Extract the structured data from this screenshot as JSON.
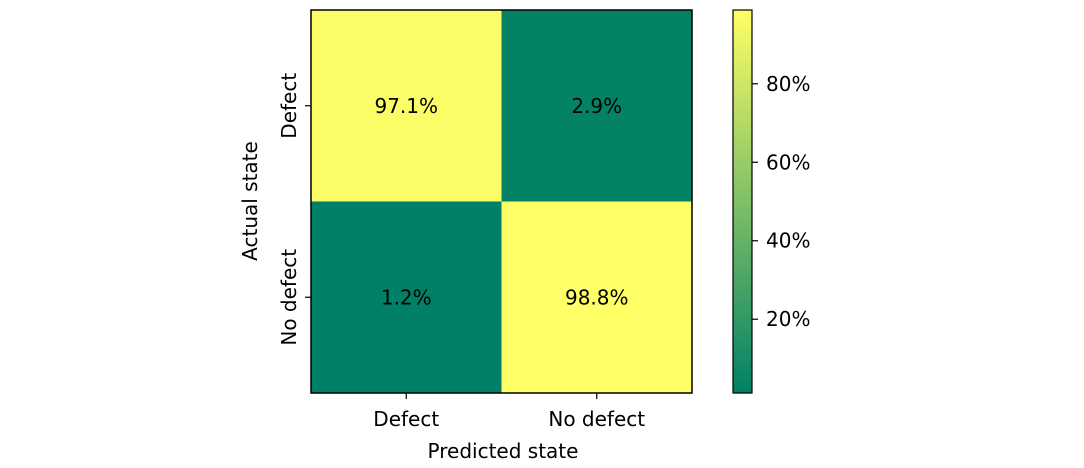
{
  "chart_data": {
    "type": "heatmap",
    "x_categories": [
      "Defect",
      "No defect"
    ],
    "y_categories": [
      "Defect",
      "No defect"
    ],
    "values": [
      [
        97.1,
        2.9
      ],
      [
        1.2,
        98.8
      ]
    ],
    "cell_labels": [
      [
        "97.1%",
        "2.9%"
      ],
      [
        "1.2%",
        "98.8%"
      ]
    ],
    "xlabel": "Predicted state",
    "ylabel": "Actual state",
    "colormap": "summer",
    "color_range": [
      1.2,
      98.8
    ],
    "colorbar": {
      "ticks": [
        20,
        40,
        60,
        80
      ],
      "tick_labels": [
        "20%",
        "40%",
        "60%",
        "80%"
      ]
    },
    "colors": {
      "low": "#008066",
      "high": "#ffff66"
    }
  }
}
